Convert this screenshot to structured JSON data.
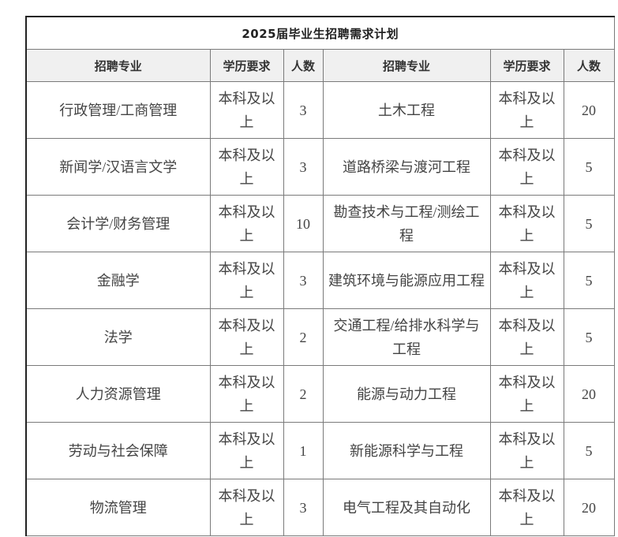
{
  "title": "2025届毕业生招聘需求计划",
  "headers": [
    "招聘专业",
    "学历要求",
    "人数",
    "招聘专业",
    "学历要求",
    "人数"
  ],
  "rows": [
    [
      "行政管理/工商管理",
      "本科及以上",
      "3",
      "土木工程",
      "本科及以上",
      "20"
    ],
    [
      "新闻学/汉语言文学",
      "本科及以上",
      "3",
      "道路桥梁与渡河工程",
      "本科及以上",
      "5"
    ],
    [
      "会计学/财务管理",
      "本科及以上",
      "10",
      "勘查技术与工程/测绘工程",
      "本科及以上",
      "5"
    ],
    [
      "金融学",
      "本科及以上",
      "3",
      "建筑环境与能源应用工程",
      "本科及以上",
      "5"
    ],
    [
      "法学",
      "本科及以上",
      "2",
      "交通工程/给排水科学与工程",
      "本科及以上",
      "5"
    ],
    [
      "人力资源管理",
      "本科及以上",
      "2",
      "能源与动力工程",
      "本科及以上",
      "20"
    ],
    [
      "劳动与社会保障",
      "本科及以上",
      "1",
      "新能源科学与工程",
      "本科及以上",
      "5"
    ],
    [
      "物流管理",
      "本科及以上",
      "3",
      "电气工程及其自动化",
      "本科及以上",
      "20"
    ]
  ]
}
